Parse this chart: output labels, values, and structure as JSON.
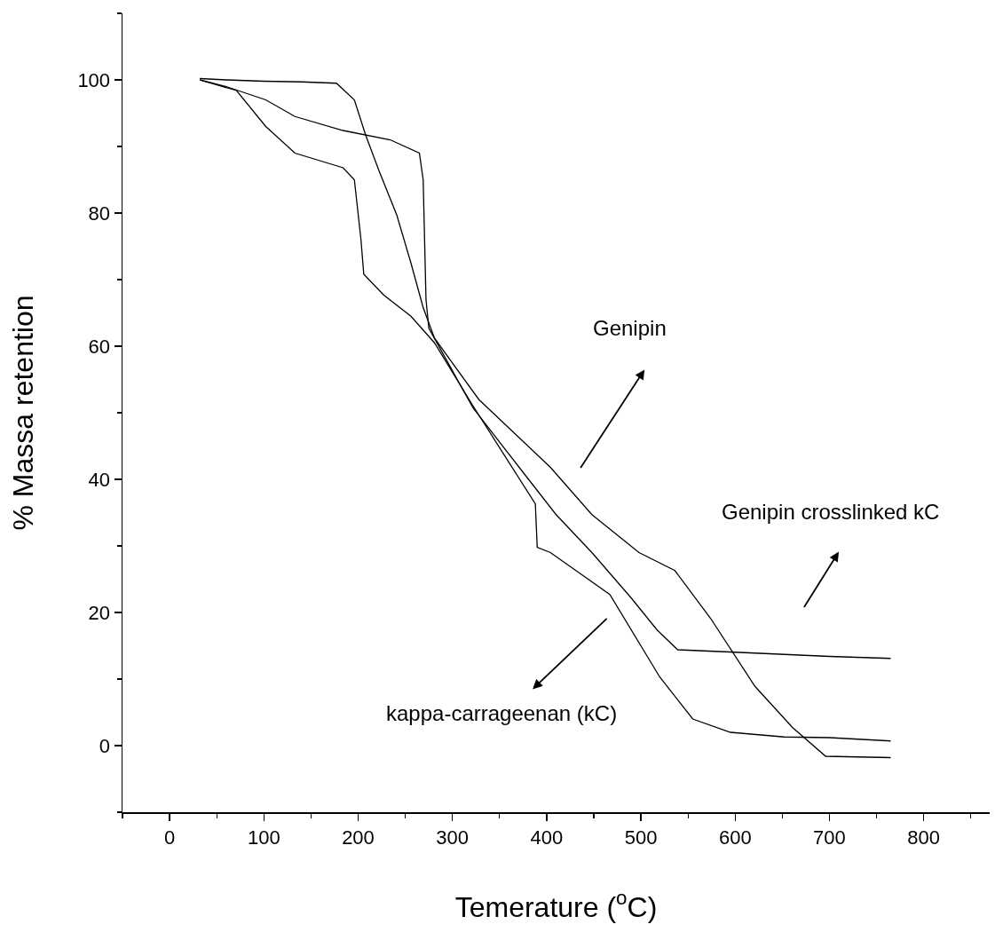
{
  "chart_data": {
    "type": "line",
    "xlabel": "Temerature ($^{o}$C)",
    "ylabel": "% Massa retention",
    "xlim": [
      -50,
      870
    ],
    "ylim": [
      -10,
      110
    ],
    "xticks": [
      0,
      100,
      200,
      300,
      400,
      500,
      600,
      700,
      800
    ],
    "yticks": [
      0,
      20,
      40,
      60,
      80,
      100
    ],
    "grid": false,
    "marker": "none",
    "line_style": "solid",
    "series": [
      {
        "color": "#000000",
        "x": [
          32,
          60,
          100,
          140,
          177,
          196,
          208,
          222,
          241,
          256,
          269,
          281,
          328,
          404,
          448,
          498,
          536,
          574,
          621,
          661,
          696,
          730,
          765
        ],
        "values": [
          100.2,
          100,
          99.8,
          99.7,
          99.5,
          97,
          91.7,
          86.4,
          79.7,
          72.5,
          65.8,
          61.2,
          52,
          41.8,
          34.7,
          29,
          26.3,
          19.1,
          8.9,
          2.7,
          -1.6,
          -1.7,
          -1.8
        ]
      },
      {
        "color": "#000000",
        "x": [
          32,
          60,
          102,
          133,
          184,
          234,
          265,
          269,
          272,
          275,
          322,
          378,
          410,
          448,
          489,
          517,
          539,
          605,
          700,
          765
        ],
        "values": [
          100,
          99,
          97,
          94.5,
          92.4,
          91,
          89,
          85,
          67,
          62.7,
          50.7,
          40.5,
          34.7,
          29,
          22.3,
          17.4,
          14.4,
          14,
          13.4,
          13.1
        ]
      },
      {
        "color": "#000000",
        "x": [
          32,
          71,
          102,
          133,
          184,
          196,
          203,
          206,
          227,
          256,
          281,
          322,
          388,
          390,
          404,
          429,
          467,
          520,
          555,
          595,
          652,
          700,
          765
        ],
        "values": [
          100,
          98.4,
          93,
          89,
          86.8,
          85,
          76,
          70.8,
          67.7,
          64.5,
          60.5,
          51,
          36.3,
          29.8,
          29,
          26.5,
          22.7,
          10.3,
          4,
          2,
          1.3,
          1.2,
          0.7
        ]
      }
    ],
    "annotations": [
      "Genipin",
      "Genipin crosslinked kC",
      "kappa-carrageenan (kC)"
    ]
  }
}
